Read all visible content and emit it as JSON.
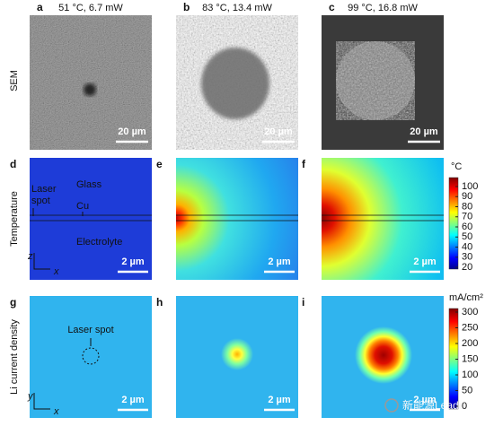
{
  "panels": [
    {
      "letter": "a",
      "title": "51 °C, 6.7 mW",
      "scale_bar": "20 µm"
    },
    {
      "letter": "b",
      "title": "83 °C, 13.4 mW",
      "scale_bar": "20 µm"
    },
    {
      "letter": "c",
      "title": "99 °C, 16.8 mW",
      "scale_bar": "20 µm"
    },
    {
      "letter": "d",
      "scale_bar": "2 µm"
    },
    {
      "letter": "e",
      "scale_bar": "2 µm"
    },
    {
      "letter": "f",
      "scale_bar": "2 µm"
    },
    {
      "letter": "g",
      "scale_bar": "2 µm"
    },
    {
      "letter": "h",
      "scale_bar": "2 µm"
    },
    {
      "letter": "i",
      "scale_bar": "2 µm"
    }
  ],
  "row_labels": [
    "SEM",
    "Temperature",
    "Li current density"
  ],
  "annotations": {
    "laser_spot": [
      "Laser",
      "spot"
    ],
    "glass": "Glass",
    "cu": "Cu",
    "electrolyte": "Electrolyte",
    "laser_spot_g": "Laser spot"
  },
  "axes": {
    "d": [
      "z",
      "x"
    ],
    "g": [
      "y",
      "x"
    ]
  },
  "colorbars": [
    {
      "unit": "°C",
      "ticks": [
        100,
        90,
        80,
        70,
        60,
        50,
        40,
        30,
        20
      ]
    },
    {
      "unit": "mA/cm²",
      "ticks": [
        300,
        250,
        200,
        150,
        100,
        50,
        0
      ]
    }
  ],
  "watermark": "新能源Leader"
}
